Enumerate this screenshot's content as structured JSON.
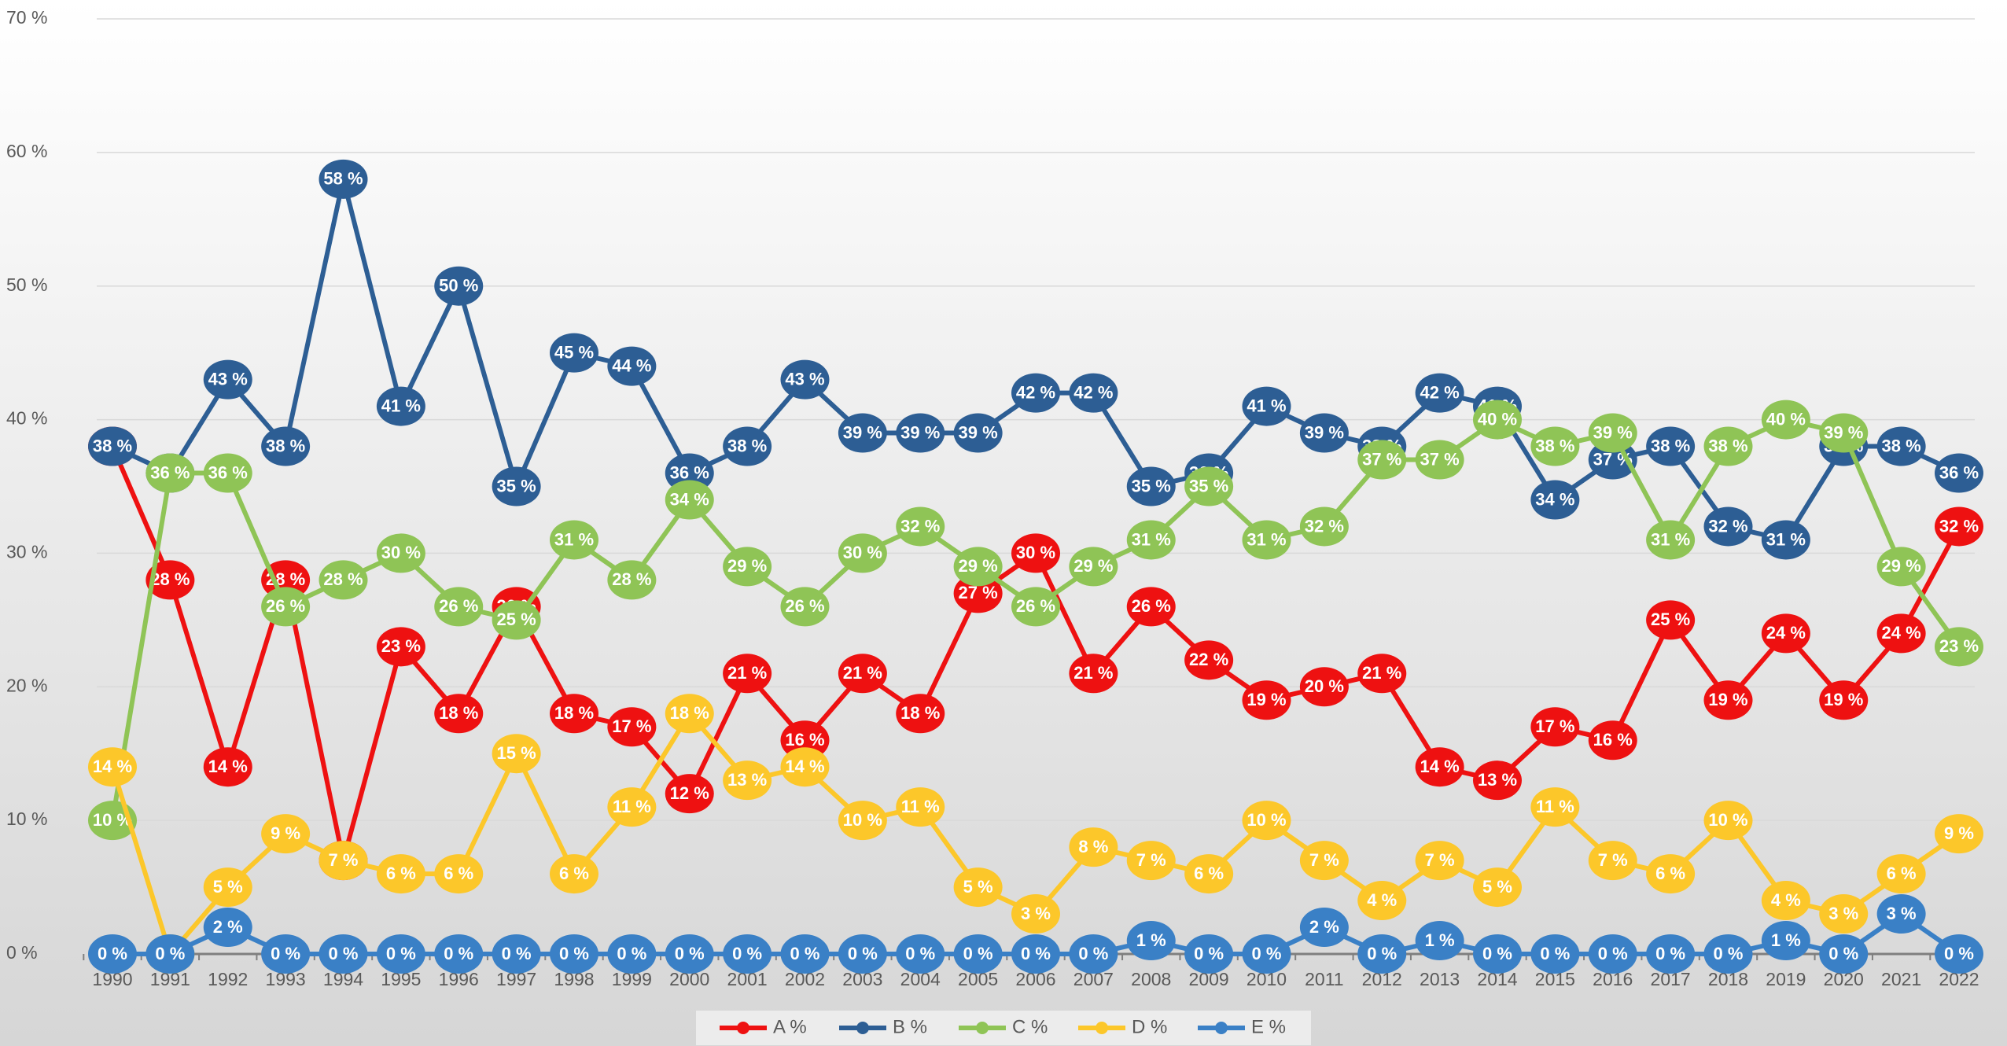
{
  "chart_data": {
    "type": "line",
    "categories": [
      "1990",
      "1991",
      "1992",
      "1993",
      "1994",
      "1995",
      "1996",
      "1997",
      "1998",
      "1999",
      "2000",
      "2001",
      "2002",
      "2003",
      "2004",
      "2005",
      "2006",
      "2007",
      "2008",
      "2009",
      "2010",
      "2011",
      "2012",
      "2013",
      "2014",
      "2015",
      "2016",
      "2017",
      "2018",
      "2019",
      "2020",
      "2021",
      "2022"
    ],
    "series": [
      {
        "name": "A %",
        "color": "#ee1111",
        "values": [
          38,
          28,
          14,
          28,
          7,
          23,
          18,
          26,
          18,
          17,
          12,
          21,
          16,
          21,
          18,
          27,
          30,
          21,
          26,
          22,
          19,
          20,
          21,
          14,
          13,
          17,
          16,
          25,
          19,
          24,
          19,
          24,
          32
        ],
        "value_labels": [
          "38 %",
          "28 %",
          "14 %",
          "28 %",
          "7 %",
          "23 %",
          "18 %",
          "26 %",
          "18 %",
          "17 %",
          "12 %",
          "21 %",
          "16 %",
          "21 %",
          "18 %",
          "27 %",
          "30 %",
          "21 %",
          "26 %",
          "22 %",
          "19 %",
          "20 %",
          "21 %",
          "14 %",
          "13 %",
          "17 %",
          "16 %",
          "25 %",
          "19 %",
          "24 %",
          "19 %",
          "24 %",
          "32 %"
        ]
      },
      {
        "name": "B %",
        "color": "#2d5e94",
        "values": [
          38,
          36,
          43,
          38,
          58,
          41,
          50,
          35,
          45,
          44,
          36,
          38,
          43,
          39,
          39,
          39,
          42,
          42,
          35,
          36,
          41,
          39,
          38,
          42,
          41,
          34,
          37,
          38,
          32,
          31,
          38,
          38,
          36
        ],
        "value_labels": [
          "38 %",
          "36 %",
          "43 %",
          "38 %",
          "58 %",
          "41 %",
          "50 %",
          "35 %",
          "45 %",
          "44 %",
          "36 %",
          "38 %",
          "43 %",
          "39 %",
          "39 %",
          "39 %",
          "42 %",
          "42 %",
          "35 %",
          "36 %",
          "41 %",
          "39 %",
          "38 %",
          "42 %",
          "41 %",
          "34 %",
          "37 %",
          "38 %",
          "32 %",
          "31 %",
          "38 %",
          "38 %",
          "36 %"
        ]
      },
      {
        "name": "C %",
        "color": "#8fc456",
        "values": [
          10,
          36,
          36,
          26,
          28,
          30,
          26,
          25,
          31,
          28,
          34,
          29,
          26,
          30,
          32,
          29,
          26,
          29,
          31,
          35,
          31,
          32,
          37,
          37,
          40,
          38,
          39,
          31,
          38,
          40,
          39,
          29,
          23
        ],
        "value_labels": [
          "10 %",
          "36 %",
          "36 %",
          "26 %",
          "28 %",
          "30 %",
          "26 %",
          "25 %",
          "31 %",
          "28 %",
          "34 %",
          "29 %",
          "26 %",
          "30 %",
          "32 %",
          "29 %",
          "26 %",
          "29 %",
          "31 %",
          "35 %",
          "31 %",
          "32 %",
          "37 %",
          "37 %",
          "40 %",
          "38 %",
          "39 %",
          "31 %",
          "38 %",
          "40 %",
          "39 %",
          "29 %",
          "23 %"
        ]
      },
      {
        "name": "D %",
        "color": "#fcc72a",
        "values": [
          14,
          0,
          5,
          9,
          7,
          6,
          6,
          15,
          6,
          11,
          18,
          13,
          14,
          10,
          11,
          5,
          3,
          8,
          7,
          6,
          10,
          7,
          4,
          7,
          5,
          11,
          7,
          6,
          10,
          4,
          3,
          6,
          9
        ],
        "value_labels": [
          "14 %",
          "0 %",
          "5 %",
          "9 %",
          "7 %",
          "6 %",
          "6 %",
          "15 %",
          "6 %",
          "11 %",
          "18 %",
          "13 %",
          "14 %",
          "10 %",
          "11 %",
          "5 %",
          "3 %",
          "8 %",
          "7 %",
          "6 %",
          "10 %",
          "7 %",
          "4 %",
          "7 %",
          "5 %",
          "11 %",
          "7 %",
          "6 %",
          "10 %",
          "4 %",
          "3 %",
          "6 %",
          "9 %"
        ]
      },
      {
        "name": "E %",
        "color": "#3a80c6",
        "values": [
          0,
          0,
          2,
          0,
          0,
          0,
          0,
          0,
          0,
          0,
          0,
          0,
          0,
          0,
          0,
          0,
          0,
          0,
          1,
          0,
          0,
          2,
          0,
          1,
          0,
          0,
          0,
          0,
          0,
          1,
          0,
          3,
          0
        ],
        "value_labels": [
          "0 %",
          "0 %",
          "2 %",
          "0 %",
          "0 %",
          "0 %",
          "0 %",
          "0 %",
          "0 %",
          "0 %",
          "0 %",
          "0 %",
          "0 %",
          "0 %",
          "0 %",
          "0 %",
          "0 %",
          "0 %",
          "1 %",
          "0 %",
          "0 %",
          "2 %",
          "0 %",
          "1 %",
          "0 %",
          "0 %",
          "0 %",
          "0 %",
          "0 %",
          "1 %",
          "0 %",
          "3 %",
          "0 %"
        ]
      }
    ],
    "ylim": [
      0,
      70
    ],
    "yticks": [
      {
        "value": 0,
        "label": "0 %"
      },
      {
        "value": 10,
        "label": "10 %"
      },
      {
        "value": 20,
        "label": "20 %"
      },
      {
        "value": 30,
        "label": "30 %"
      },
      {
        "value": 40,
        "label": "40 %"
      },
      {
        "value": 50,
        "label": "50 %"
      },
      {
        "value": 60,
        "label": "60 %"
      },
      {
        "value": 70,
        "label": "70 %"
      }
    ],
    "grid": true,
    "legend": "bottom"
  }
}
